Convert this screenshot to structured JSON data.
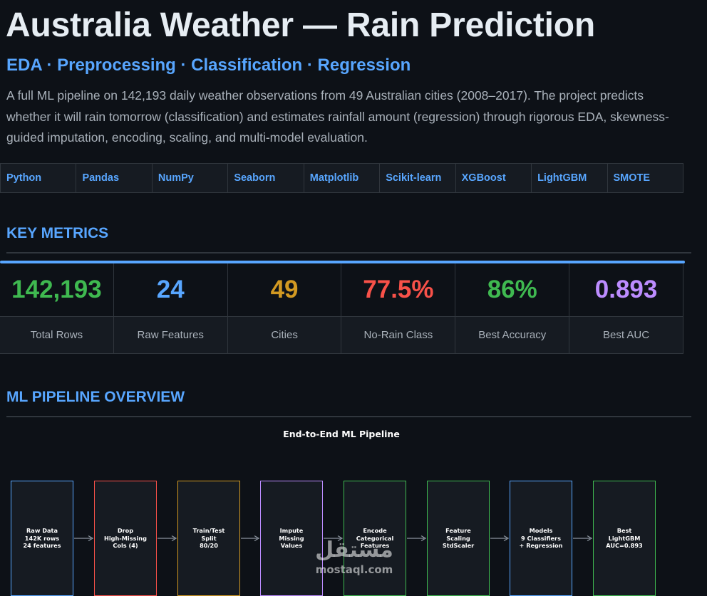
{
  "header": {
    "title": "Australia Weather — Rain Prediction",
    "subtitle": "EDA · Preprocessing · Classification · Regression",
    "description": "A full ML pipeline on 142,193 daily weather observations from 49 Australian cities (2008–2017). The project predicts whether it will rain tomorrow (classification) and estimates rainfall amount (regression) through rigorous EDA, skewness-guided imputation, encoding, scaling, and multi-model evaluation."
  },
  "tags": [
    "Python",
    "Pandas",
    "NumPy",
    "Seaborn",
    "Matplotlib",
    "Scikit-learn",
    "XGBoost",
    "LightGBM",
    "SMOTE"
  ],
  "key_metrics": {
    "heading": "KEY METRICS",
    "items": [
      {
        "value": "142,193",
        "label": "Total Rows",
        "color": "#3fb950"
      },
      {
        "value": "24",
        "label": "Raw Features",
        "color": "#58a6ff"
      },
      {
        "value": "49",
        "label": "Cities",
        "color": "#d29922"
      },
      {
        "value": "77.5%",
        "label": "No-Rain Class",
        "color": "#f85149"
      },
      {
        "value": "86%",
        "label": "Best Accuracy",
        "color": "#3fb950"
      },
      {
        "value": "0.893",
        "label": "Best AUC",
        "color": "#bc8cff"
      }
    ]
  },
  "pipeline": {
    "heading": "ML PIPELINE OVERVIEW",
    "chart_title": "End-to-End ML Pipeline",
    "steps": [
      {
        "text": "Raw Data\n142K rows\n24 features",
        "color": "#58a6ff"
      },
      {
        "text": "Drop\nHigh-Missing\nCols (4)",
        "color": "#f85149"
      },
      {
        "text": "Train/Test\nSplit\n80/20",
        "color": "#d29922"
      },
      {
        "text": "Impute\nMissing\nValues",
        "color": "#bc8cff"
      },
      {
        "text": "Encode\nCategorical\nFeatures",
        "color": "#3fb950"
      },
      {
        "text": "Feature\nScaling\nStdScaler",
        "color": "#3fb950"
      },
      {
        "text": "Models\n9 Classifiers\n+ Regression",
        "color": "#58a6ff"
      },
      {
        "text": "Best\nLightGBM\nAUC=0.893",
        "color": "#3fb950"
      }
    ]
  },
  "watermark": {
    "arabic": "مستقل",
    "latin": "mostaql.com"
  }
}
